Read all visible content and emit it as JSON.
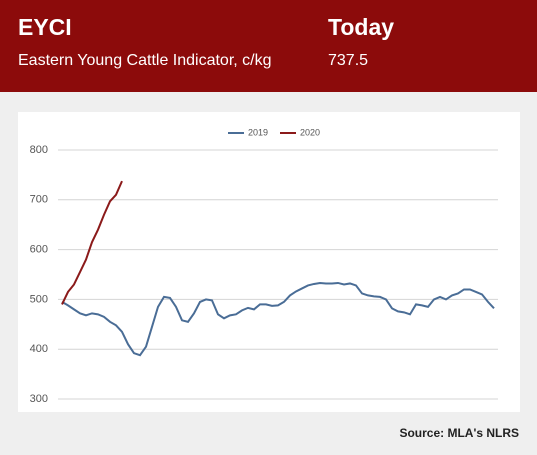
{
  "header": {
    "title": "EYCI",
    "subtitle": "Eastern Young Cattle Indicator, c/kg",
    "today_label": "Today",
    "today_value": "737.5"
  },
  "chart_data": {
    "type": "line",
    "series": [
      {
        "name": "2019",
        "color": "#4a6d96",
        "values": [
          495,
          488,
          480,
          472,
          468,
          472,
          470,
          465,
          455,
          448,
          435,
          410,
          392,
          388,
          405,
          445,
          485,
          505,
          503,
          485,
          458,
          455,
          472,
          495,
          500,
          498,
          470,
          462,
          468,
          470,
          478,
          483,
          480,
          490,
          490,
          487,
          488,
          495,
          508,
          516,
          522,
          528,
          531,
          533,
          532,
          532,
          533,
          530,
          532,
          528,
          512,
          508,
          506,
          505,
          500,
          482,
          476,
          474,
          470,
          490,
          488,
          485,
          500,
          505,
          500,
          508,
          512,
          520,
          520,
          515,
          510,
          495,
          482
        ]
      },
      {
        "name": "2020",
        "color": "#8b1a1a",
        "values": [
          490,
          515,
          530,
          555,
          580,
          615,
          640,
          670,
          697,
          710,
          737.5
        ]
      }
    ],
    "ylim": [
      300,
      800
    ],
    "yticks": [
      300,
      400,
      500,
      600,
      700,
      800
    ],
    "grid": true
  },
  "source": "Source: MLA's NLRS"
}
